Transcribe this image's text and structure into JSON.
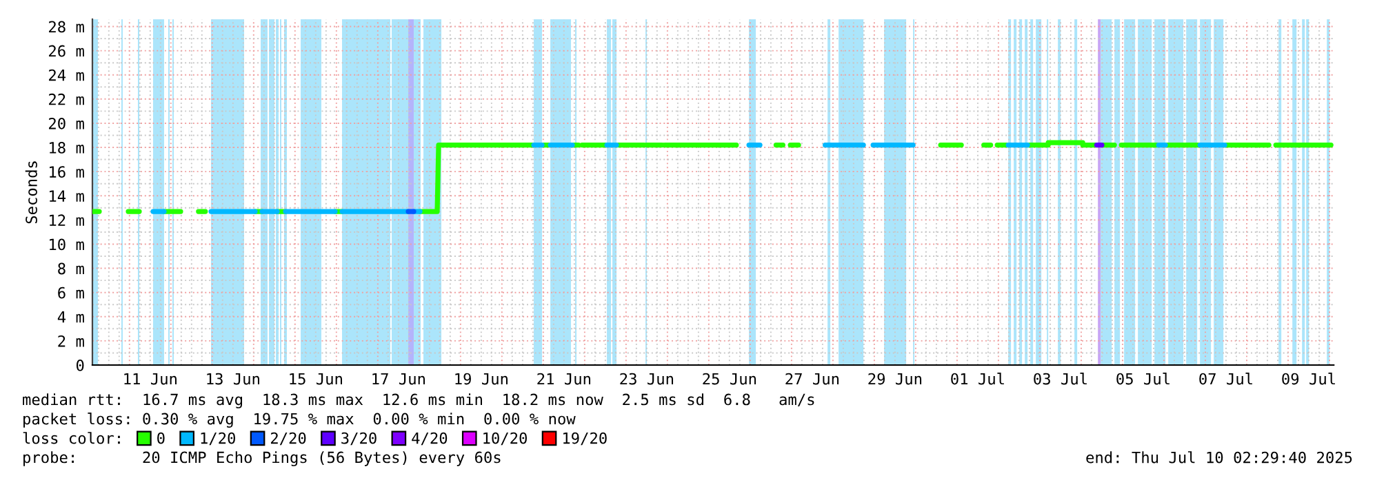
{
  "chart_data": {
    "type": "line",
    "ylabel": "Seconds",
    "xlim": [
      "2025-06-10T02:29",
      "2025-07-10T02:29"
    ],
    "xticks": [
      {
        "value": "2025-06-11T12:00",
        "label": "11 Jun"
      },
      {
        "value": "2025-06-13T12:00",
        "label": "13 Jun"
      },
      {
        "value": "2025-06-15T12:00",
        "label": "15 Jun"
      },
      {
        "value": "2025-06-17T12:00",
        "label": "17 Jun"
      },
      {
        "value": "2025-06-19T12:00",
        "label": "19 Jun"
      },
      {
        "value": "2025-06-21T12:00",
        "label": "21 Jun"
      },
      {
        "value": "2025-06-23T12:00",
        "label": "23 Jun"
      },
      {
        "value": "2025-06-25T12:00",
        "label": "25 Jun"
      },
      {
        "value": "2025-06-27T12:00",
        "label": "27 Jun"
      },
      {
        "value": "2025-06-29T12:00",
        "label": "29 Jun"
      },
      {
        "value": "2025-07-01T12:00",
        "label": "01 Jul"
      },
      {
        "value": "2025-07-03T12:00",
        "label": "03 Jul"
      },
      {
        "value": "2025-07-05T12:00",
        "label": "05 Jul"
      },
      {
        "value": "2025-07-07T12:00",
        "label": "07 Jul"
      },
      {
        "value": "2025-07-09T12:00",
        "label": "09 Jul"
      }
    ],
    "ylim": [
      0,
      28.6
    ],
    "yticks": [
      0,
      {
        "value": 2,
        "label": "2 m"
      },
      {
        "value": 4,
        "label": "4 m"
      },
      {
        "value": 6,
        "label": "6 m"
      },
      {
        "value": 8,
        "label": "8 m"
      },
      {
        "value": 10,
        "label": "10 m"
      },
      {
        "value": 12,
        "label": "12 m"
      },
      {
        "value": 14,
        "label": "14 m"
      },
      {
        "value": 16,
        "label": "16 m"
      },
      {
        "value": 18,
        "label": "18 m"
      },
      {
        "value": 20,
        "label": "20 m"
      },
      {
        "value": 22,
        "label": "22 m"
      },
      {
        "value": 24,
        "label": "24 m"
      },
      {
        "value": 26,
        "label": "26 m"
      },
      {
        "value": 28,
        "label": "28 m"
      }
    ],
    "grid": true,
    "legend": "bottom",
    "line_style": "solid",
    "series": [
      {
        "name": "0",
        "color": "#26ff00",
        "x": [
          "2025-06-10T02:29",
          "2025-06-10T06:29",
          null,
          "2025-06-10T23:17",
          "2025-06-11T05:41",
          null,
          "2025-06-11T20:05",
          "2025-06-12T05:41",
          null,
          "2025-06-12T16:00",
          "2025-06-12T20:00",
          null,
          "2025-06-14T00:53",
          "2025-06-14T04:53",
          null,
          "2025-06-14T13:41",
          "2025-06-14T18:29",
          null,
          "2025-06-15T23:17",
          "2025-06-16T03:17",
          null,
          "2025-06-18T00:30",
          "2025-06-18T10:29",
          "2025-06-18T11:17",
          "2025-06-20T18:29",
          null,
          "2025-06-20T23:17",
          "2025-06-21T04:05",
          null,
          "2025-06-21T16:53",
          "2025-06-21T20:30",
          null,
          "2025-06-21T22:29",
          "2025-06-22T12:53",
          null,
          "2025-06-22T18:29",
          "2025-06-23T10:29",
          null,
          "2025-06-23T12:05",
          "2025-06-23T20:53",
          null,
          "2025-06-23T22:29",
          "2025-06-25T11:17",
          null,
          "2025-06-25T12:00",
          "2025-06-25T16:00",
          null,
          "2025-06-26T15:00",
          "2025-06-26T19:00",
          null,
          "2025-06-26T23:17",
          "2025-06-27T04:05",
          null,
          "2025-06-30T14:29",
          "2025-07-01T02:29",
          null,
          "2025-07-01T15:30",
          "2025-07-01T19:30",
          null,
          "2025-07-01T23:17",
          "2025-07-02T05:41",
          null,
          "2025-07-02T16:53",
          "2025-07-03T04:53",
          "2025-07-03T04:53",
          "2025-07-04T00:53",
          "2025-07-04T00:53",
          "2025-07-04T09:00",
          null,
          "2025-07-04T12:00",
          "2025-07-04T19:17",
          null,
          "2025-07-04T23:17",
          "2025-07-05T20:53",
          null,
          "2025-07-06T00:53",
          "2025-07-06T20:53",
          null,
          "2025-07-07T11:17",
          "2025-07-08T12:53",
          null,
          "2025-07-08T16:53",
          "2025-07-10T00:53"
        ],
        "values": [
          12.7,
          12.7,
          null,
          12.7,
          12.7,
          null,
          12.7,
          12.7,
          null,
          12.7,
          12.7,
          null,
          12.7,
          12.7,
          null,
          12.7,
          12.7,
          null,
          12.7,
          12.7,
          null,
          12.7,
          12.7,
          18.2,
          18.2,
          null,
          18.2,
          18.2,
          null,
          18.2,
          18.2,
          null,
          18.2,
          18.2,
          null,
          18.2,
          18.2,
          null,
          18.2,
          18.2,
          null,
          18.2,
          18.2,
          null,
          18.2,
          18.2,
          null,
          18.2,
          18.2,
          null,
          18.2,
          18.2,
          null,
          18.2,
          18.2,
          null,
          18.2,
          18.2,
          null,
          18.2,
          18.2,
          null,
          18.2,
          18.2,
          18.4,
          18.4,
          18.2,
          18.2,
          null,
          18.2,
          18.2,
          null,
          18.2,
          18.2,
          null,
          18.2,
          18.2,
          null,
          18.2,
          18.2,
          null,
          18.2,
          18.2
        ]
      },
      {
        "name": "1/20",
        "color": "#00b8ff",
        "x": [
          "2025-06-11T13:41",
          "2025-06-11T20:05",
          null,
          "2025-06-12T23:17",
          "2025-06-14T00:53",
          null,
          "2025-06-14T04:53",
          "2025-06-14T13:41",
          null,
          "2025-06-14T18:29",
          "2025-06-15T23:17",
          null,
          "2025-06-16T03:17",
          "2025-06-17T17:41",
          null,
          "2025-06-17T20:53",
          "2025-06-18T00:30",
          null,
          "2025-06-20T18:29",
          "2025-06-20T23:17",
          null,
          "2025-06-21T04:05",
          "2025-06-21T16:53",
          null,
          "2025-06-22T12:53",
          "2025-06-22T18:29",
          null,
          "2025-06-25T23:17",
          "2025-06-26T05:41",
          null,
          "2025-06-27T19:30",
          "2025-06-28T17:41",
          null,
          "2025-06-28T23:17",
          "2025-06-29T22:29",
          null,
          "2025-07-02T05:41",
          "2025-07-02T16:53",
          null,
          "2025-07-05T20:53",
          "2025-07-06T00:53",
          null,
          "2025-07-06T20:53",
          "2025-07-07T11:17"
        ],
        "values": [
          12.7,
          12.7,
          null,
          12.7,
          12.7,
          null,
          12.7,
          12.7,
          null,
          12.7,
          12.7,
          null,
          12.7,
          12.7,
          null,
          12.7,
          12.7,
          null,
          18.2,
          18.2,
          null,
          18.2,
          18.2,
          null,
          18.2,
          18.2,
          null,
          18.2,
          18.2,
          null,
          18.2,
          18.2,
          null,
          18.2,
          18.2,
          null,
          18.2,
          18.2,
          null,
          18.2,
          18.2,
          null,
          18.2,
          18.2
        ]
      },
      {
        "name": "2/20",
        "color": "#0059ff",
        "x": [
          "2025-06-17T17:41",
          "2025-06-17T20:53"
        ],
        "values": [
          12.7,
          12.7
        ]
      },
      {
        "name": "3/20",
        "color": "#5e00ff",
        "x": [
          "2025-07-04T09:00",
          "2025-07-04T12:00"
        ],
        "values": [
          18.2,
          18.2
        ]
      },
      {
        "name": "4/20",
        "color": "#7e00ff"
      },
      {
        "name": "10/20",
        "color": "#dd00ff"
      },
      {
        "name": "19/20",
        "color": "#ff0000"
      }
    ],
    "bands": [
      {
        "axis": "x",
        "from": "2025-06-10T02:29",
        "to": "2025-06-10T05:41",
        "color": "#abe5fb"
      },
      {
        "axis": "x",
        "from": "2025-06-10T19:16",
        "to": "2025-06-10T20:05",
        "color": "#abe5fb"
      },
      {
        "axis": "x",
        "from": "2025-06-11T04:52",
        "to": "2025-06-11T05:41",
        "color": "#abe5fb"
      },
      {
        "axis": "x",
        "from": "2025-06-11T13:41",
        "to": "2025-06-11T20:05",
        "color": "#abe5fb"
      },
      {
        "axis": "x",
        "from": "2025-06-11T22:29",
        "to": "2025-06-11T23:17",
        "color": "#abe5fb"
      },
      {
        "axis": "x",
        "from": "2025-06-12T00:53",
        "to": "2025-06-12T01:41",
        "color": "#abe5fb"
      },
      {
        "axis": "x",
        "from": "2025-06-12T23:17",
        "to": "2025-06-13T18:29",
        "color": "#abe5fb"
      },
      {
        "axis": "x",
        "from": "2025-06-14T04:05",
        "to": "2025-06-14T08:05",
        "color": "#abe5fb"
      },
      {
        "axis": "x",
        "from": "2025-06-14T08:53",
        "to": "2025-06-14T12:05",
        "color": "#abe5fb"
      },
      {
        "axis": "x",
        "from": "2025-06-14T12:53",
        "to": "2025-06-14T14:29",
        "color": "#abe5fb"
      },
      {
        "axis": "x",
        "from": "2025-06-14T15:17",
        "to": "2025-06-14T16:05",
        "color": "#abe5fb"
      },
      {
        "axis": "x",
        "from": "2025-06-14T17:41",
        "to": "2025-06-14T19:17",
        "color": "#abe5fb"
      },
      {
        "axis": "x",
        "from": "2025-06-15T03:17",
        "to": "2025-06-15T15:17",
        "color": "#abe5fb"
      },
      {
        "axis": "x",
        "from": "2025-06-16T03:17",
        "to": "2025-06-17T07:17",
        "color": "#abe5fb"
      },
      {
        "axis": "x",
        "from": "2025-06-17T08:05",
        "to": "2025-06-17T17:41",
        "color": "#abe5fb"
      },
      {
        "axis": "x",
        "from": "2025-06-17T17:41",
        "to": "2025-06-17T20:53",
        "color": "#b4b4fb"
      },
      {
        "axis": "x",
        "from": "2025-06-17T20:53",
        "to": "2025-06-18T00:53",
        "color": "#abe5fb"
      },
      {
        "axis": "x",
        "from": "2025-06-18T02:29",
        "to": "2025-06-18T12:53",
        "color": "#abe5fb"
      },
      {
        "axis": "x",
        "from": "2025-06-20T18:29",
        "to": "2025-06-20T23:17",
        "color": "#abe5fb"
      },
      {
        "axis": "x",
        "from": "2025-06-21T04:05",
        "to": "2025-06-21T16:05",
        "color": "#abe5fb"
      },
      {
        "axis": "x",
        "from": "2025-06-21T18:29",
        "to": "2025-06-21T19:17",
        "color": "#abe5fb"
      },
      {
        "axis": "x",
        "from": "2025-06-22T12:53",
        "to": "2025-06-22T15:17",
        "color": "#abe5fb"
      },
      {
        "axis": "x",
        "from": "2025-06-22T16:05",
        "to": "2025-06-22T18:29",
        "color": "#abe5fb"
      },
      {
        "axis": "x",
        "from": "2025-06-23T11:17",
        "to": "2025-06-23T12:05",
        "color": "#abe5fb"
      },
      {
        "axis": "x",
        "from": "2025-06-25T23:17",
        "to": "2025-06-26T03:17",
        "color": "#abe5fb"
      },
      {
        "axis": "x",
        "from": "2025-06-27T20:53",
        "to": "2025-06-27T22:29",
        "color": "#abe5fb"
      },
      {
        "axis": "x",
        "from": "2025-06-28T03:17",
        "to": "2025-06-28T17:41",
        "color": "#abe5fb"
      },
      {
        "axis": "x",
        "from": "2025-06-29T05:41",
        "to": "2025-06-29T18:29",
        "color": "#abe5fb"
      },
      {
        "axis": "x",
        "from": "2025-06-29T22:29",
        "to": "2025-06-29T23:17",
        "color": "#abe5fb"
      },
      {
        "axis": "x",
        "from": "2025-07-02T05:41",
        "to": "2025-07-02T07:17",
        "color": "#abe5fb"
      },
      {
        "axis": "x",
        "from": "2025-07-02T08:53",
        "to": "2025-07-02T10:29",
        "color": "#abe5fb"
      },
      {
        "axis": "x",
        "from": "2025-07-02T12:05",
        "to": "2025-07-02T13:41",
        "color": "#abe5fb"
      },
      {
        "axis": "x",
        "from": "2025-07-02T15:17",
        "to": "2025-07-02T16:53",
        "color": "#abe5fb"
      },
      {
        "axis": "x",
        "from": "2025-07-02T18:29",
        "to": "2025-07-02T20:05",
        "color": "#abe5fb"
      },
      {
        "axis": "x",
        "from": "2025-07-02T21:41",
        "to": "2025-07-03T00:53",
        "color": "#abe5fb"
      },
      {
        "axis": "x",
        "from": "2025-07-03T04:05",
        "to": "2025-07-03T04:53",
        "color": "#abe5fb"
      },
      {
        "axis": "x",
        "from": "2025-07-03T10:29",
        "to": "2025-07-03T12:05",
        "color": "#abe5fb"
      },
      {
        "axis": "x",
        "from": "2025-07-03T20:05",
        "to": "2025-07-03T21:41",
        "color": "#abe5fb"
      },
      {
        "axis": "x",
        "from": "2025-07-04T09:41",
        "to": "2025-07-04T11:17",
        "color": "#c7a6f5"
      },
      {
        "axis": "x",
        "from": "2025-07-04T11:17",
        "to": "2025-07-04T17:41",
        "color": "#abe5fb"
      },
      {
        "axis": "x",
        "from": "2025-07-04T19:17",
        "to": "2025-07-04T22:29",
        "color": "#abe5fb"
      },
      {
        "axis": "x",
        "from": "2025-07-05T00:53",
        "to": "2025-07-05T07:17",
        "color": "#abe5fb"
      },
      {
        "axis": "x",
        "from": "2025-07-05T08:53",
        "to": "2025-07-05T16:53",
        "color": "#abe5fb"
      },
      {
        "axis": "x",
        "from": "2025-07-05T18:29",
        "to": "2025-07-06T00:53",
        "color": "#abe5fb"
      },
      {
        "axis": "x",
        "from": "2025-07-06T02:29",
        "to": "2025-07-06T11:17",
        "color": "#abe5fb"
      },
      {
        "axis": "x",
        "from": "2025-07-06T12:53",
        "to": "2025-07-06T19:17",
        "color": "#abe5fb"
      },
      {
        "axis": "x",
        "from": "2025-07-06T20:53",
        "to": "2025-07-07T03:17",
        "color": "#abe5fb"
      },
      {
        "axis": "x",
        "from": "2025-07-07T04:53",
        "to": "2025-07-07T10:29",
        "color": "#abe5fb"
      },
      {
        "axis": "x",
        "from": "2025-07-08T18:29",
        "to": "2025-07-08T20:05",
        "color": "#abe5fb"
      },
      {
        "axis": "x",
        "from": "2025-07-09T02:29",
        "to": "2025-07-09T04:53",
        "color": "#abe5fb"
      },
      {
        "axis": "x",
        "from": "2025-07-09T08:05",
        "to": "2025-07-09T09:41",
        "color": "#abe5fb"
      },
      {
        "axis": "x",
        "from": "2025-07-09T10:29",
        "to": "2025-07-09T12:05",
        "color": "#abe5fb"
      },
      {
        "axis": "x",
        "from": "2025-07-09T22:29",
        "to": "2025-07-10T00:05",
        "color": "#abe5fb"
      }
    ],
    "annotations": [
      "median rtt:  16.7 ms avg  18.3 ms max  12.6 ms min  18.2 ms now  2.5 ms sd  6.8   am/s",
      "packet loss: 0.30 % avg  19.75 % max  0.00 % min  0.00 % now",
      "loss color:",
      "probe:       20 ICMP Echo Pings (56 Bytes) every 60s",
      "end: Thu Jul 10 02:29:40 2025"
    ]
  }
}
